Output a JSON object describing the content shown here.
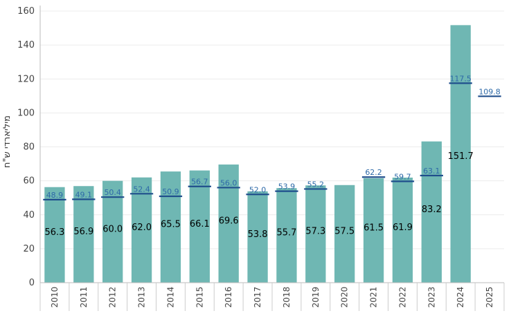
{
  "chart_data": {
    "type": "bar",
    "title": "",
    "xlabel": "",
    "ylabel": "מיליארדי ש\"ח",
    "ylim": [
      0,
      160
    ],
    "yticks": [
      0,
      20,
      40,
      60,
      80,
      100,
      120,
      140,
      160
    ],
    "grid": true,
    "categories": [
      "2010",
      "2011",
      "2012",
      "2013",
      "2014",
      "2015",
      "2016",
      "2017",
      "2018",
      "2019",
      "2020",
      "2021",
      "2022",
      "2023",
      "2024",
      "2025"
    ],
    "series": [
      {
        "name": "bars",
        "kind": "bar",
        "values": [
          56.3,
          56.9,
          60.0,
          62.0,
          65.5,
          66.1,
          69.6,
          53.8,
          55.7,
          57.3,
          57.5,
          61.5,
          61.9,
          83.2,
          151.7,
          null
        ],
        "labels": [
          "56.3",
          "56.9",
          "60.0",
          "62.0",
          "65.5",
          "66.1",
          "69.6",
          "53.8",
          "55.7",
          "57.3",
          "57.5",
          "61.5",
          "61.9",
          "83.2",
          "151.7",
          ""
        ]
      },
      {
        "name": "markers",
        "kind": "marker",
        "values": [
          48.9,
          49.1,
          50.4,
          52.4,
          50.9,
          56.7,
          56.0,
          52.0,
          53.9,
          55.2,
          null,
          62.2,
          59.7,
          63.1,
          117.5,
          109.8
        ],
        "labels": [
          "48.9",
          "49.1",
          "50.4",
          "52.4",
          "50.9",
          "56.7",
          "56.0",
          "52.0",
          "53.9",
          "55.2",
          "",
          "62.2",
          "59.7",
          "63.1",
          "117.5",
          "109.8"
        ]
      }
    ],
    "colors": {
      "bar": "#6fb7b3",
      "marker": "#1f4e8c",
      "marker_label": "#2e6aa8",
      "grid": "#ececec",
      "axis": "#bbbbbb"
    }
  }
}
